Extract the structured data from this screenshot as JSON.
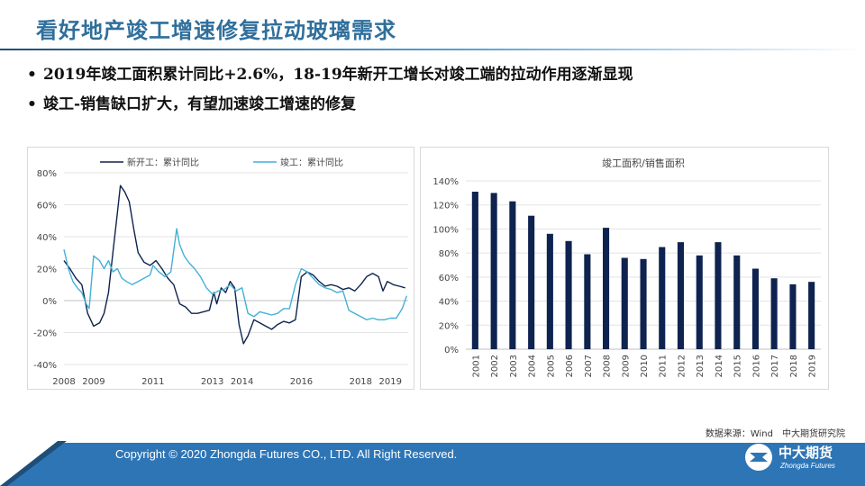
{
  "title": "看好地产竣工增速修复拉动玻璃需求",
  "bullets": [
    "2019年竣工面积累计同比+2.6%，18-19年新开工增长对竣工端的拉动作用逐渐显现",
    "竣工-销售缺口扩大，有望加速竣工增速的修复"
  ],
  "bullet_glyph": "•",
  "source": "数据来源：Wind　中大期货研究院",
  "footer": {
    "copyright": "Copyright © 2020 Zhongda Futures CO., LTD. All Right Reserved.",
    "logo_cn": "中大期货",
    "logo_en": "Zhongda Futures"
  },
  "colors": {
    "navy": "#0f2350",
    "cyan": "#43b1d6",
    "title": "#2f6f9c",
    "footer": "#2e75b6"
  },
  "chart_data": [
    {
      "type": "line",
      "title": "",
      "legend_position": "top",
      "x_tick_labels": [
        "2008",
        "2009",
        "2011",
        "2013",
        "2014",
        "2016",
        "2018",
        "2019"
      ],
      "x_ticks": [
        2008.0,
        2009.0,
        2011.0,
        2013.0,
        2014.0,
        2016.0,
        2018.0,
        2019.0
      ],
      "xlim": [
        2008.0,
        2019.6
      ],
      "ylim": [
        -40,
        80
      ],
      "y_ticks": [
        -40,
        -20,
        0,
        20,
        40,
        60,
        80
      ],
      "y_format": "percent",
      "grid": true,
      "series": [
        {
          "name": "新开工：累计同比",
          "color": "#0f2350",
          "points": [
            [
              2008.0,
              25
            ],
            [
              2008.2,
              20
            ],
            [
              2008.4,
              14
            ],
            [
              2008.6,
              10
            ],
            [
              2008.8,
              -8
            ],
            [
              2009.0,
              -16
            ],
            [
              2009.2,
              -14
            ],
            [
              2009.35,
              -8
            ],
            [
              2009.5,
              5
            ],
            [
              2009.65,
              30
            ],
            [
              2009.8,
              55
            ],
            [
              2009.9,
              72
            ],
            [
              2010.05,
              68
            ],
            [
              2010.2,
              62
            ],
            [
              2010.35,
              45
            ],
            [
              2010.5,
              30
            ],
            [
              2010.7,
              24
            ],
            [
              2010.9,
              22
            ],
            [
              2011.1,
              25
            ],
            [
              2011.3,
              20
            ],
            [
              2011.5,
              14
            ],
            [
              2011.7,
              10
            ],
            [
              2011.9,
              -2
            ],
            [
              2012.1,
              -4
            ],
            [
              2012.3,
              -8
            ],
            [
              2012.5,
              -8
            ],
            [
              2012.7,
              -7
            ],
            [
              2012.9,
              -6
            ],
            [
              2013.05,
              5
            ],
            [
              2013.15,
              -2
            ],
            [
              2013.3,
              8
            ],
            [
              2013.45,
              5
            ],
            [
              2013.6,
              12
            ],
            [
              2013.75,
              8
            ],
            [
              2013.9,
              -15
            ],
            [
              2014.05,
              -27
            ],
            [
              2014.2,
              -22
            ],
            [
              2014.4,
              -12
            ],
            [
              2014.6,
              -14
            ],
            [
              2014.8,
              -16
            ],
            [
              2015.0,
              -18
            ],
            [
              2015.2,
              -15
            ],
            [
              2015.4,
              -13
            ],
            [
              2015.6,
              -14
            ],
            [
              2015.8,
              -12
            ],
            [
              2016.0,
              15
            ],
            [
              2016.2,
              18
            ],
            [
              2016.4,
              16
            ],
            [
              2016.6,
              12
            ],
            [
              2016.8,
              9
            ],
            [
              2017.0,
              10
            ],
            [
              2017.2,
              9
            ],
            [
              2017.4,
              7
            ],
            [
              2017.6,
              8
            ],
            [
              2017.8,
              6
            ],
            [
              2018.0,
              10
            ],
            [
              2018.2,
              15
            ],
            [
              2018.4,
              17
            ],
            [
              2018.6,
              15
            ],
            [
              2018.75,
              6
            ],
            [
              2018.9,
              12
            ],
            [
              2019.1,
              10
            ],
            [
              2019.3,
              9
            ],
            [
              2019.5,
              8
            ]
          ]
        },
        {
          "name": "竣工：累计同比",
          "color": "#43b1d6",
          "points": [
            [
              2008.0,
              32
            ],
            [
              2008.15,
              20
            ],
            [
              2008.3,
              12
            ],
            [
              2008.45,
              8
            ],
            [
              2008.6,
              5
            ],
            [
              2008.75,
              -2
            ],
            [
              2008.85,
              -5
            ],
            [
              2009.0,
              28
            ],
            [
              2009.2,
              25
            ],
            [
              2009.35,
              20
            ],
            [
              2009.5,
              25
            ],
            [
              2009.65,
              18
            ],
            [
              2009.8,
              20
            ],
            [
              2009.95,
              14
            ],
            [
              2010.1,
              12
            ],
            [
              2010.3,
              10
            ],
            [
              2010.5,
              12
            ],
            [
              2010.7,
              14
            ],
            [
              2010.9,
              16
            ],
            [
              2011.0,
              22
            ],
            [
              2011.2,
              18
            ],
            [
              2011.4,
              15
            ],
            [
              2011.6,
              18
            ],
            [
              2011.8,
              45
            ],
            [
              2011.9,
              35
            ],
            [
              2012.05,
              28
            ],
            [
              2012.2,
              24
            ],
            [
              2012.4,
              20
            ],
            [
              2012.6,
              15
            ],
            [
              2012.8,
              8
            ],
            [
              2013.0,
              4
            ],
            [
              2013.2,
              6
            ],
            [
              2013.4,
              7
            ],
            [
              2013.6,
              10
            ],
            [
              2013.8,
              6
            ],
            [
              2014.0,
              8
            ],
            [
              2014.2,
              -8
            ],
            [
              2014.4,
              -10
            ],
            [
              2014.6,
              -7
            ],
            [
              2014.8,
              -8
            ],
            [
              2015.0,
              -9
            ],
            [
              2015.2,
              -8
            ],
            [
              2015.4,
              -5
            ],
            [
              2015.6,
              -5
            ],
            [
              2015.8,
              10
            ],
            [
              2016.0,
              20
            ],
            [
              2016.2,
              18
            ],
            [
              2016.4,
              14
            ],
            [
              2016.6,
              10
            ],
            [
              2016.8,
              8
            ],
            [
              2017.0,
              7
            ],
            [
              2017.2,
              5
            ],
            [
              2017.4,
              6
            ],
            [
              2017.6,
              -6
            ],
            [
              2017.8,
              -8
            ],
            [
              2018.0,
              -10
            ],
            [
              2018.2,
              -12
            ],
            [
              2018.4,
              -11
            ],
            [
              2018.6,
              -12
            ],
            [
              2018.8,
              -12
            ],
            [
              2019.0,
              -11
            ],
            [
              2019.2,
              -11
            ],
            [
              2019.4,
              -5
            ],
            [
              2019.55,
              3
            ]
          ]
        }
      ]
    },
    {
      "type": "bar",
      "title": "竣工面积/销售面积",
      "categories": [
        "2001",
        "2002",
        "2003",
        "2004",
        "2005",
        "2006",
        "2007",
        "2008",
        "2009",
        "2010",
        "2011",
        "2012",
        "2013",
        "2014",
        "2015",
        "2016",
        "2017",
        "2018",
        "2019"
      ],
      "values": [
        131,
        130,
        123,
        111,
        96,
        90,
        79,
        101,
        76,
        75,
        85,
        89,
        78,
        89,
        78,
        67,
        59,
        54,
        56
      ],
      "ylim": [
        0,
        140
      ],
      "y_ticks": [
        0,
        20,
        40,
        60,
        80,
        100,
        120,
        140
      ],
      "y_format": "percent",
      "grid": true,
      "color": "#0f2350"
    }
  ]
}
